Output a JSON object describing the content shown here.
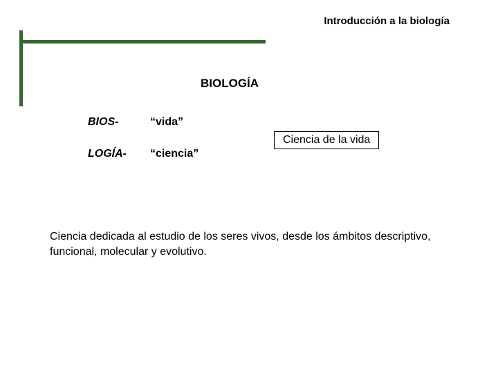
{
  "header": {
    "title": "Introducción a la biología"
  },
  "decoration": {
    "hline_color": "#336633",
    "vline_color": "#336633"
  },
  "main": {
    "title": "BIOLOGÍA"
  },
  "etymology": {
    "rows": [
      {
        "prefix": "BIOS-",
        "meaning": "“vida”"
      },
      {
        "prefix": "LOGÍA-",
        "meaning": "“ciencia”"
      }
    ]
  },
  "boxed_phrase": "Ciencia de la vida",
  "definition": "Ciencia dedicada al estudio de los seres vivos, desde los ámbitos descriptivo, funcional, molecular y evolutivo."
}
